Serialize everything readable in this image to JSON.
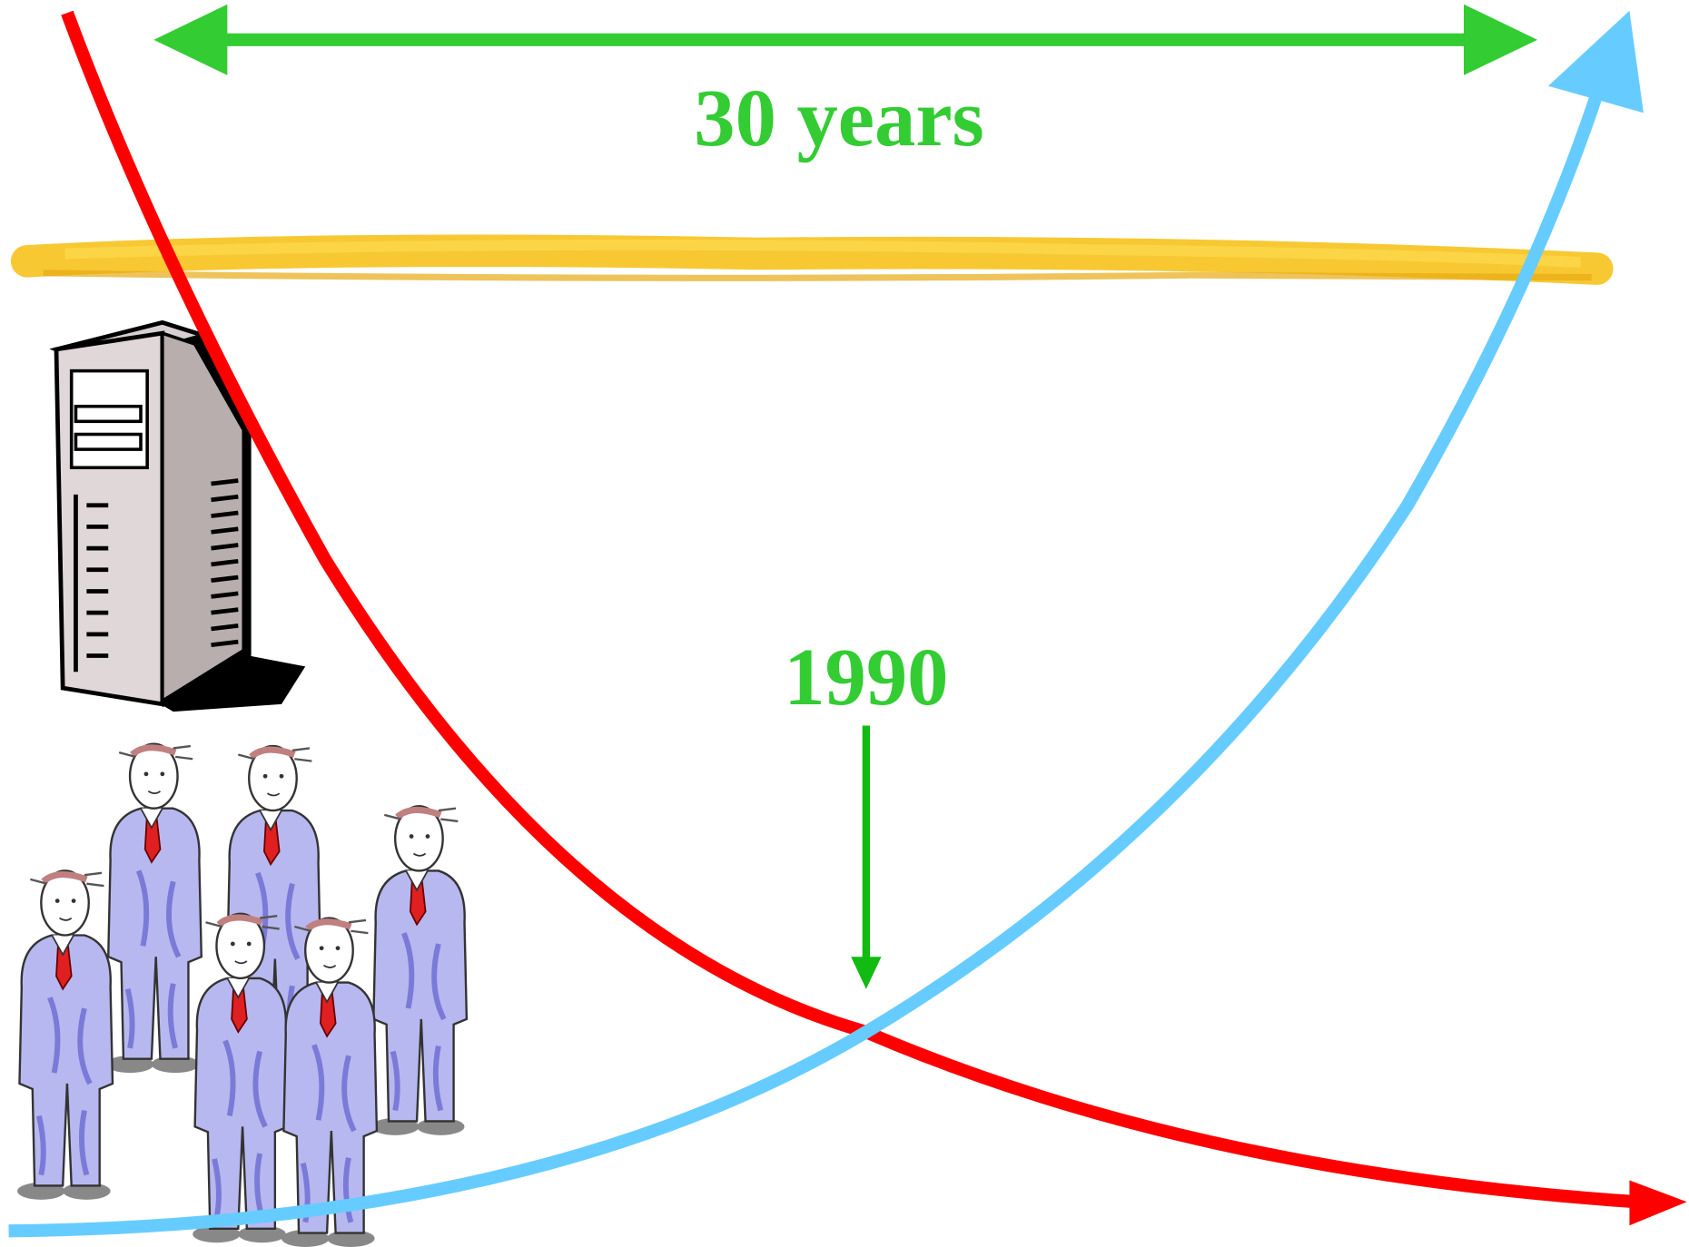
{
  "labels": {
    "span": "30 years",
    "year": "1990"
  }
}
